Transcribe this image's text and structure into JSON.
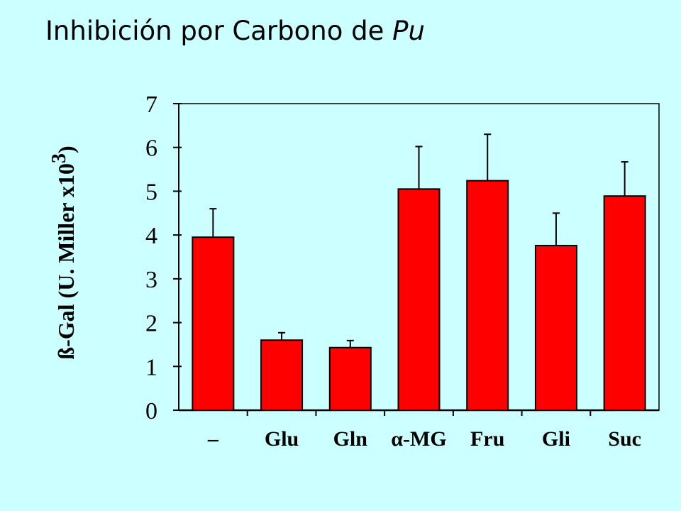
{
  "title": {
    "text": "Inhibición por Carbono de ",
    "italic": "Pu"
  },
  "colors": {
    "background": "#ccffff",
    "bar_fill": "#ff0000",
    "bar_stroke": "#000000"
  },
  "chart_data": {
    "type": "bar",
    "title": "Inhibición por Carbono de Pu",
    "categories": [
      "–",
      "Glu",
      "Gln",
      "α-MG",
      "Fru",
      "Gli",
      "Suc"
    ],
    "values": [
      3.95,
      1.6,
      1.43,
      5.05,
      5.24,
      3.76,
      4.89
    ],
    "errors": [
      0.65,
      0.17,
      0.16,
      0.97,
      1.06,
      0.74,
      0.78
    ],
    "ylabel": "ß-Gal (U. Miller x10",
    "ylabel_exponent": "3",
    "ylabel_close": ")",
    "xlabel": "",
    "ylim": [
      0,
      7
    ],
    "yticks": [
      "0",
      "1",
      "2",
      "3",
      "4",
      "5",
      "6",
      "7"
    ],
    "grid": false,
    "legend": false
  }
}
